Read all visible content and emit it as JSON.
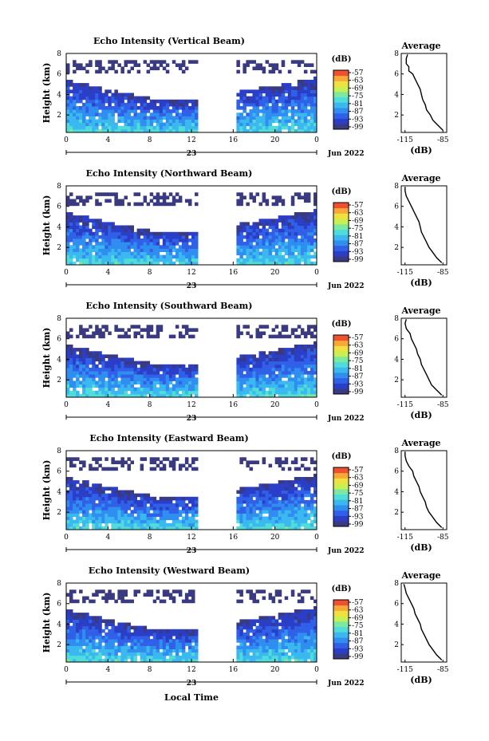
{
  "figure": {
    "xlabel": "Local Time",
    "date_label": "Jun 2022",
    "day_label": "23"
  },
  "colors": {
    "no_data": "#ffffff",
    "scale": [
      "#3a3a82",
      "#2a3ec8",
      "#3060e8",
      "#2f8ef0",
      "#3cb8f0",
      "#50dcd8",
      "#7ce8a0",
      "#c8f050",
      "#f0e040",
      "#f8a838",
      "#f05030"
    ]
  },
  "chart_data": [
    {
      "type": "heatmap",
      "title": "Echo Intensity (Vertical Beam)",
      "ylabel": "Height (km)",
      "xlim": [
        0,
        24
      ],
      "ylim": [
        0.3,
        8
      ],
      "xticks": [
        "0",
        "4",
        "8",
        "12",
        "16",
        "20",
        "0"
      ],
      "yticks": [
        "2",
        "4",
        "6",
        "8"
      ],
      "data_gap_hours": [
        12.7,
        16.3
      ],
      "colorbar": {
        "label": "(dB)",
        "ticks": [
          "-57",
          "-63",
          "-69",
          "-75",
          "-81",
          "-87",
          "-93",
          "-99"
        ],
        "range": [
          -99,
          -57
        ]
      },
      "profile": {
        "title": "Average",
        "xlabel": "(dB)",
        "xticks": [
          "-115",
          "-85"
        ],
        "xlim": [
          -118,
          -82
        ],
        "ylim": [
          0.3,
          8
        ],
        "yticks": [
          "2",
          "4",
          "6",
          "8"
        ],
        "height_km": [
          0.5,
          1.0,
          1.5,
          2.0,
          2.5,
          3.0,
          3.5,
          4.0,
          4.5,
          5.0,
          5.5,
          6.0,
          6.3,
          6.7,
          7.0,
          7.5,
          7.9
        ],
        "db": [
          -85,
          -89,
          -93,
          -95,
          -98,
          -99,
          -101,
          -102,
          -103,
          -105,
          -107,
          -109,
          -112,
          -112,
          -114,
          -114,
          -113
        ]
      }
    },
    {
      "type": "heatmap",
      "title": "Echo Intensity (Northward Beam)",
      "ylabel": "Height (km)",
      "xlim": [
        0,
        24
      ],
      "ylim": [
        0.3,
        8
      ],
      "xticks": [
        "0",
        "4",
        "8",
        "12",
        "16",
        "20",
        "0"
      ],
      "yticks": [
        "2",
        "4",
        "6",
        "8"
      ],
      "data_gap_hours": [
        12.7,
        16.3
      ],
      "colorbar": {
        "label": "(dB)",
        "ticks": [
          "-57",
          "-63",
          "-69",
          "-75",
          "-81",
          "-87",
          "-93",
          "-99"
        ],
        "range": [
          -99,
          -57
        ]
      },
      "profile": {
        "title": "Average",
        "xlabel": "(dB)",
        "xticks": [
          "-115",
          "-85"
        ],
        "xlim": [
          -118,
          -82
        ],
        "ylim": [
          0.3,
          8
        ],
        "yticks": [
          "2",
          "4",
          "6",
          "8"
        ],
        "height_km": [
          0.5,
          1.0,
          1.5,
          2.0,
          2.5,
          3.0,
          3.5,
          4.0,
          4.5,
          5.0,
          5.5,
          6.0,
          6.5,
          7.0,
          7.5,
          7.9
        ],
        "db": [
          -86,
          -90,
          -93,
          -96,
          -98,
          -100,
          -102,
          -103,
          -104,
          -106,
          -108,
          -110,
          -112,
          -114,
          -115,
          -115
        ]
      }
    },
    {
      "type": "heatmap",
      "title": "Echo Intensity (Southward Beam)",
      "ylabel": "Height (km)",
      "xlim": [
        0,
        24
      ],
      "ylim": [
        0.3,
        8
      ],
      "xticks": [
        "0",
        "4",
        "8",
        "12",
        "16",
        "20",
        "0"
      ],
      "yticks": [
        "2",
        "4",
        "6",
        "8"
      ],
      "data_gap_hours": [
        12.7,
        16.3
      ],
      "colorbar": {
        "label": "(dB)",
        "ticks": [
          "-57",
          "-63",
          "-69",
          "-75",
          "-81",
          "-87",
          "-93",
          "-99"
        ],
        "range": [
          -99,
          -57
        ]
      },
      "profile": {
        "title": "Average",
        "xlabel": "(dB)",
        "xticks": [
          "-115",
          "-85"
        ],
        "xlim": [
          -118,
          -82
        ],
        "ylim": [
          0.3,
          8
        ],
        "yticks": [
          "2",
          "4",
          "6",
          "8"
        ],
        "height_km": [
          0.5,
          1.0,
          1.5,
          2.0,
          2.5,
          3.0,
          3.5,
          4.0,
          4.5,
          5.0,
          5.5,
          6.0,
          6.5,
          7.0,
          7.5,
          7.9
        ],
        "db": [
          -86,
          -90,
          -94,
          -96,
          -98,
          -100,
          -102,
          -103,
          -105,
          -106,
          -108,
          -110,
          -111,
          -114,
          -115,
          -114
        ]
      }
    },
    {
      "type": "heatmap",
      "title": "Echo Intensity (Eastward Beam)",
      "ylabel": "Height (km)",
      "xlim": [
        0,
        24
      ],
      "ylim": [
        0.3,
        8
      ],
      "xticks": [
        "0",
        "4",
        "8",
        "12",
        "16",
        "20",
        "0"
      ],
      "yticks": [
        "2",
        "4",
        "6",
        "8"
      ],
      "data_gap_hours": [
        12.7,
        16.3
      ],
      "colorbar": {
        "label": "(dB)",
        "ticks": [
          "-57",
          "-63",
          "-69",
          "-75",
          "-81",
          "-87",
          "-93",
          "-99"
        ],
        "range": [
          -99,
          -57
        ]
      },
      "profile": {
        "title": "Average",
        "xlabel": "(dB)",
        "xticks": [
          "-115",
          "-85"
        ],
        "xlim": [
          -118,
          -82
        ],
        "ylim": [
          0.3,
          8
        ],
        "yticks": [
          "2",
          "4",
          "6",
          "8"
        ],
        "height_km": [
          0.5,
          1.0,
          1.5,
          2.0,
          2.5,
          3.0,
          3.5,
          4.0,
          4.5,
          5.0,
          5.5,
          6.0,
          6.5,
          7.0,
          7.5,
          7.9
        ],
        "db": [
          -86,
          -90,
          -93,
          -96,
          -98,
          -99,
          -101,
          -103,
          -104,
          -106,
          -108,
          -109,
          -112,
          -114,
          -115,
          -115
        ]
      }
    },
    {
      "type": "heatmap",
      "title": "Echo Intensity (Westward Beam)",
      "ylabel": "Height (km)",
      "xlim": [
        0,
        24
      ],
      "ylim": [
        0.3,
        8
      ],
      "xticks": [
        "0",
        "4",
        "8",
        "12",
        "16",
        "20",
        "0"
      ],
      "yticks": [
        "2",
        "4",
        "6",
        "8"
      ],
      "data_gap_hours": [
        12.7,
        16.3
      ],
      "colorbar": {
        "label": "(dB)",
        "ticks": [
          "-57",
          "-63",
          "-69",
          "-75",
          "-81",
          "-87",
          "-93",
          "-99"
        ],
        "range": [
          -99,
          -57
        ]
      },
      "profile": {
        "title": "Average",
        "xlabel": "(dB)",
        "xticks": [
          "-115",
          "-85"
        ],
        "xlim": [
          -118,
          -82
        ],
        "ylim": [
          0.3,
          8
        ],
        "yticks": [
          "2",
          "4",
          "6",
          "8"
        ],
        "height_km": [
          0.5,
          1.0,
          1.5,
          2.0,
          2.5,
          3.0,
          3.5,
          4.0,
          4.5,
          5.0,
          5.5,
          6.0,
          6.5,
          7.0,
          7.5,
          7.9
        ],
        "db": [
          -86,
          -90,
          -93,
          -96,
          -98,
          -100,
          -102,
          -103,
          -105,
          -107,
          -108,
          -110,
          -112,
          -114,
          -115,
          -116
        ]
      }
    }
  ]
}
